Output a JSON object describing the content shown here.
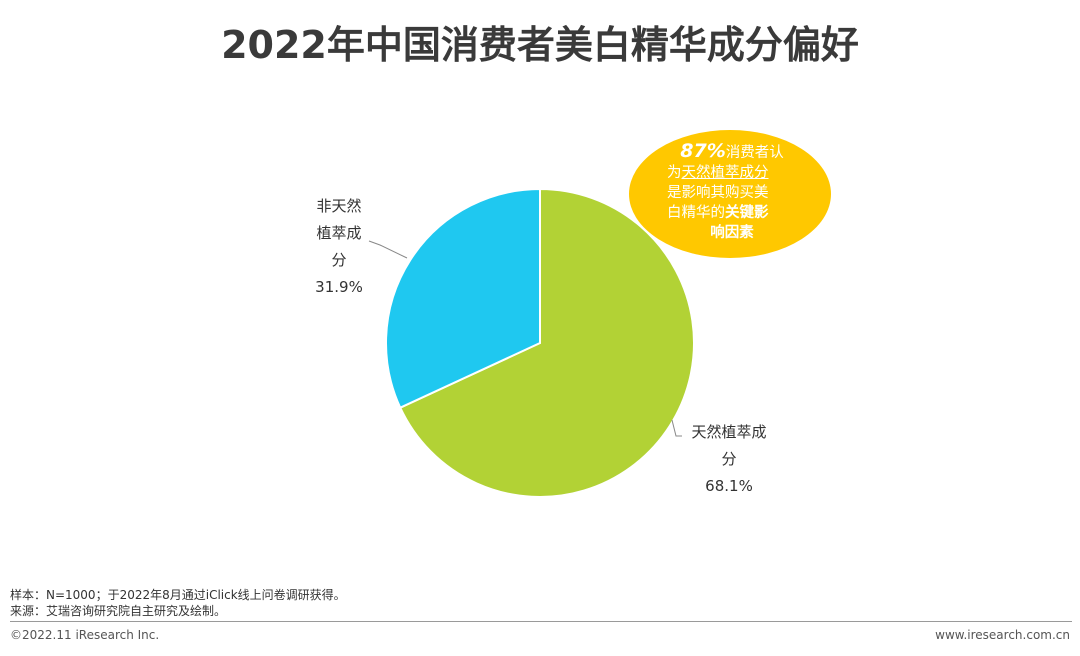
{
  "title": "2022年中国消费者美白精华成分偏好",
  "chart_data": {
    "type": "pie",
    "title": "2022年中国消费者美白精华成分偏好",
    "categories": [
      "天然植萃成分",
      "非天然植萃成分"
    ],
    "values": [
      68.1,
      31.9
    ],
    "unit": "%",
    "value_labels": [
      "68.1%",
      "31.9%"
    ],
    "colors": [
      "#b2d235",
      "#1fc8f0"
    ],
    "legend": "none"
  },
  "labels": {
    "natural": {
      "line1": "天然植萃成",
      "line2": "分",
      "value": "68.1%"
    },
    "non_natural": {
      "line1": "非天然",
      "line2": "植萃成",
      "line3": "分",
      "value": "31.9%"
    }
  },
  "callout": {
    "percent": "87%",
    "text1": "消费者认",
    "text2": "为",
    "text3": "天然植萃成分",
    "text4": "是影响其购买美",
    "text5": "白精华的",
    "text6": "关键影",
    "text7": "响因素",
    "color": "#ffc800"
  },
  "footer": {
    "sample": "样本：N=1000；于2022年8月通过iClick线上问卷调研获得。",
    "source": "来源：艾瑞咨询研究院自主研究及绘制。",
    "copyright": "©2022.11 iResearch Inc.",
    "website": "www.iresearch.com.cn"
  }
}
